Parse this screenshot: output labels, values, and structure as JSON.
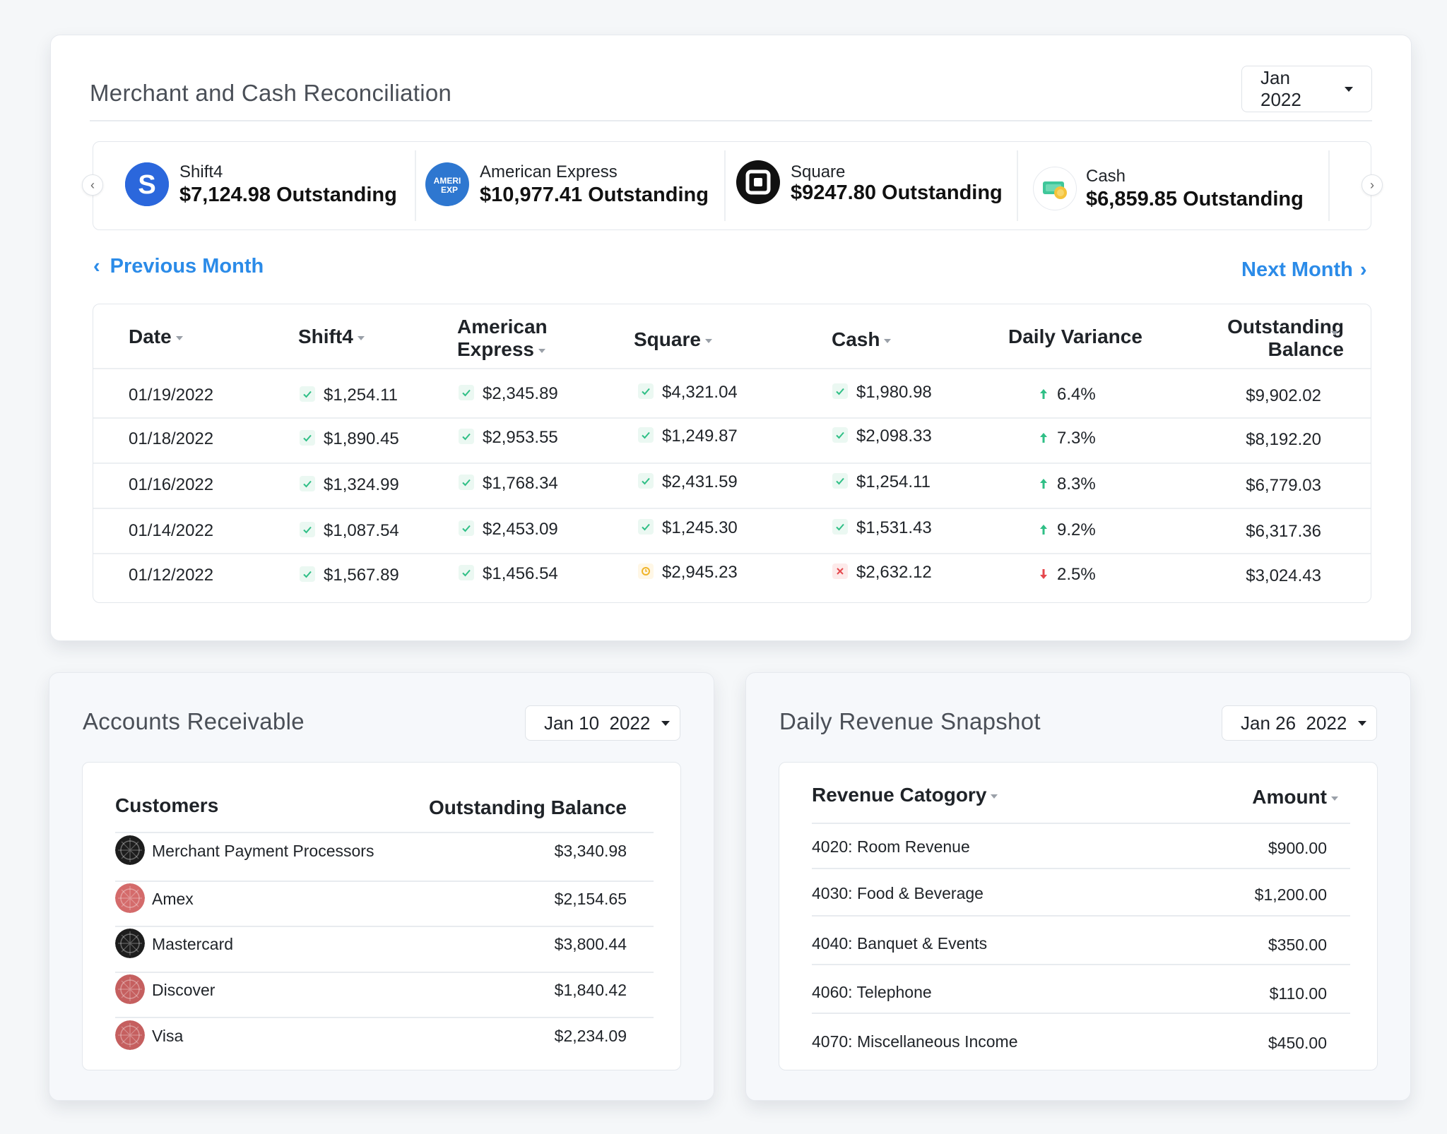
{
  "reconciliation": {
    "title": "Merchant and Cash Reconciliation",
    "month_selector": "Jan 2022",
    "merchants": [
      {
        "name": "Shift4",
        "amount": "$7,124.98 Outstanding",
        "logo": "shift4-logo"
      },
      {
        "name": "American Express",
        "amount": "$10,977.41 Outstanding",
        "logo": "amex-logo"
      },
      {
        "name": "Square",
        "amount": "$9247.80 Outstanding",
        "logo": "square-logo"
      },
      {
        "name": "Cash",
        "amount": "$6,859.85 Outstanding",
        "logo": "cash-icon"
      }
    ],
    "prev_month": "Previous Month",
    "next_month": "Next Month",
    "columns": [
      "Date",
      "Shift4",
      "American Express",
      "Square",
      "Cash",
      "Daily Variance",
      "Outstanding Balance"
    ],
    "rows": [
      {
        "date": "01/19/2022",
        "shift4": "$1,254.11",
        "shift4_status": "ok",
        "amex": "$2,345.89",
        "amex_status": "ok",
        "square": "$4,321.04",
        "square_status": "ok",
        "cash": "$1,980.98",
        "cash_status": "ok",
        "variance": "6.4%",
        "variance_dir": "up",
        "balance": "$9,902.02"
      },
      {
        "date": "01/18/2022",
        "shift4": "$1,890.45",
        "shift4_status": "ok",
        "amex": "$2,953.55",
        "amex_status": "ok",
        "square": "$1,249.87",
        "square_status": "ok",
        "cash": "$2,098.33",
        "cash_status": "ok",
        "variance": "7.3%",
        "variance_dir": "up",
        "balance": "$8,192.20"
      },
      {
        "date": "01/16/2022",
        "shift4": "$1,324.99",
        "shift4_status": "ok",
        "amex": "$1,768.34",
        "amex_status": "ok",
        "square": "$2,431.59",
        "square_status": "ok",
        "cash": "$1,254.11",
        "cash_status": "ok",
        "variance": "8.3%",
        "variance_dir": "up",
        "balance": "$6,779.03"
      },
      {
        "date": "01/14/2022",
        "shift4": "$1,087.54",
        "shift4_status": "ok",
        "amex": "$2,453.09",
        "amex_status": "ok",
        "square": "$1,245.30",
        "square_status": "ok",
        "cash": "$1,531.43",
        "cash_status": "ok",
        "variance": "9.2%",
        "variance_dir": "up",
        "balance": "$6,317.36"
      },
      {
        "date": "01/12/2022",
        "shift4": "$1,567.89",
        "shift4_status": "ok",
        "amex": "$1,456.54",
        "amex_status": "ok",
        "square": "$2,945.23",
        "square_status": "pending",
        "cash": "$2,632.12",
        "cash_status": "fail",
        "variance": "2.5%",
        "variance_dir": "down",
        "balance": "$3,024.43"
      }
    ],
    "colors": {
      "accent": "#2b8be8",
      "ok": "#2fbf86",
      "pending": "#f0b429",
      "fail": "#e5484d",
      "up": "#2fbf86",
      "down": "#e5484d"
    }
  },
  "accounts_receivable": {
    "title": "Accounts Receivable",
    "date_selector": "Jan 10  2022",
    "col_customers": "Customers",
    "col_balance": "Outstanding Balance",
    "rows": [
      {
        "customer": "Merchant Payment Processors",
        "balance": "$3,340.98"
      },
      {
        "customer": "Amex",
        "balance": "$2,154.65"
      },
      {
        "customer": "Mastercard",
        "balance": "$3,800.44"
      },
      {
        "customer": "Discover",
        "balance": "$1,840.42"
      },
      {
        "customer": "Visa",
        "balance": "$2,234.09"
      }
    ]
  },
  "revenue": {
    "title": "Daily Revenue Snapshot",
    "date_selector": "Jan 26  2022",
    "col_category": "Revenue Catogory",
    "col_amount": "Amount",
    "rows": [
      {
        "category": "4020: Room Revenue",
        "amount": "$900.00"
      },
      {
        "category": "4030: Food & Beverage",
        "amount": "$1,200.00"
      },
      {
        "category": "4040: Banquet & Events",
        "amount": "$350.00"
      },
      {
        "category": "4060: Telephone",
        "amount": "$110.00"
      },
      {
        "category": "4070: Miscellaneous Income",
        "amount": "$450.00"
      }
    ]
  }
}
